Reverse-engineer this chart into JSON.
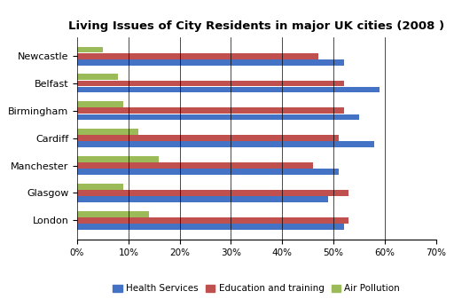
{
  "title": "Living Issues of City Residents in major UK cities (2008 )",
  "cities": [
    "Newcastle",
    "Belfast",
    "Birmingham",
    "Cardiff",
    "Manchester",
    "Glasgow",
    "London"
  ],
  "health_services": [
    52,
    59,
    55,
    58,
    51,
    49,
    52
  ],
  "education_training": [
    47,
    52,
    52,
    51,
    46,
    53,
    53
  ],
  "air_pollution": [
    5,
    8,
    9,
    12,
    16,
    9,
    14
  ],
  "colors": {
    "health": "#4472C4",
    "education": "#C0504D",
    "air": "#9BBB59"
  },
  "xlim": [
    0,
    70
  ],
  "xticks": [
    0,
    10,
    20,
    30,
    40,
    50,
    60,
    70
  ],
  "xtick_labels": [
    "0%",
    "10%",
    "20%",
    "30%",
    "40%",
    "50%",
    "60%",
    "70%"
  ],
  "legend_labels": [
    "Health Services",
    "Education and training",
    "Air Pollution"
  ],
  "background_color": "#FFFFFF",
  "title_fontsize": 9.5
}
